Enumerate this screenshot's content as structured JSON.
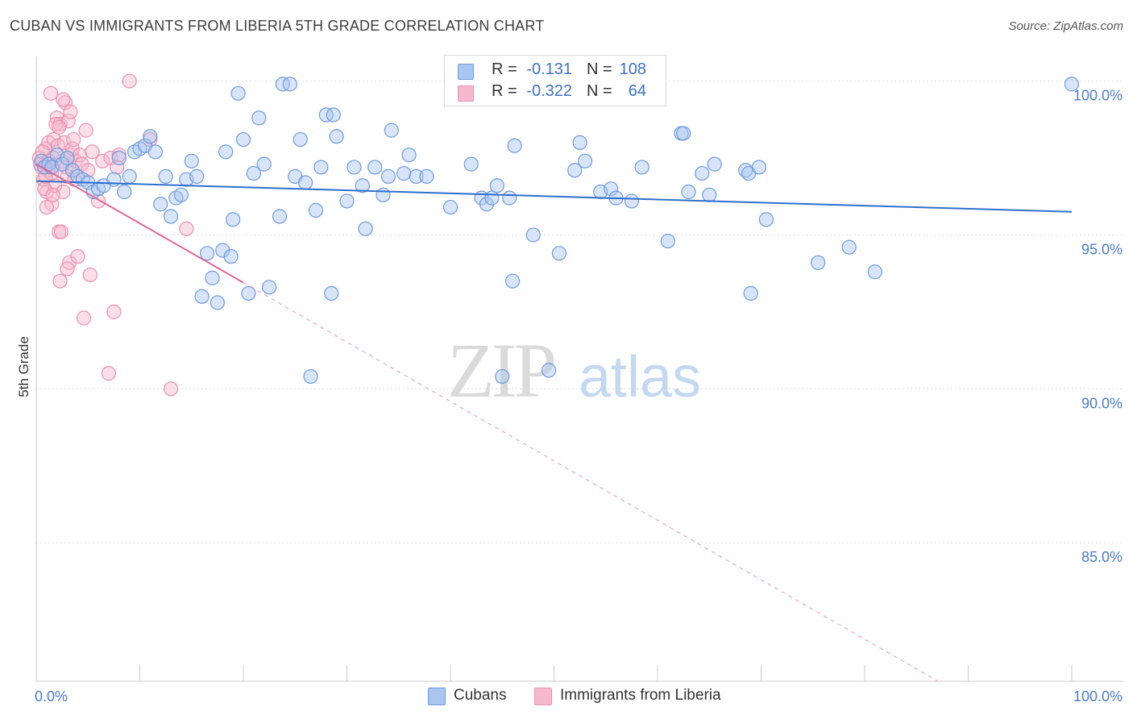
{
  "title": "CUBAN VS IMMIGRANTS FROM LIBERIA 5TH GRADE CORRELATION CHART",
  "source": "Source: ZipAtlas.com",
  "watermark": {
    "zip": "ZIP",
    "atlas": "atlas"
  },
  "legend": {
    "r_label": "R =",
    "n_label": "N =",
    "cubans": {
      "r": "-0.131",
      "n": "108"
    },
    "liberia": {
      "r": "-0.322",
      "n": "64"
    }
  },
  "bottom_legend": {
    "cubans": "Cubans",
    "liberia": "Immigrants from Liberia"
  },
  "colors": {
    "cubans_fill": "#a9c6f0",
    "cubans_stroke": "#6d9be0",
    "cubans_line": "#2f6fcc",
    "liberia_fill": "#f6b9cc",
    "liberia_stroke": "#ec8fb0",
    "liberia_line": "#e06693",
    "tick_label": "#4a7cc9",
    "grid": "#dddddd"
  },
  "chart_data": {
    "type": "scatter",
    "xlabel": "",
    "ylabel": "5th Grade",
    "xlim": [
      0,
      100
    ],
    "ylim": [
      80.5,
      100.8
    ],
    "x_tick_labels": [
      {
        "value": 0,
        "label": "0.0%"
      },
      {
        "value": 100,
        "label": "100.0%"
      }
    ],
    "y_ticks": [
      {
        "value": 100,
        "label": "100.0%"
      },
      {
        "value": 95,
        "label": "95.0%"
      },
      {
        "value": 90,
        "label": "90.0%"
      },
      {
        "value": 85,
        "label": "85.0%"
      }
    ],
    "grid": true,
    "series": [
      {
        "name": "Cubans",
        "trend": {
          "x": [
            0,
            100
          ],
          "y": [
            96.75,
            95.75
          ]
        },
        "points": [
          [
            0.5,
            97.4
          ],
          [
            0.8,
            97.2
          ],
          [
            1.2,
            97.3
          ],
          [
            1.5,
            97.2
          ],
          [
            2,
            97.6
          ],
          [
            2.5,
            97.3
          ],
          [
            3,
            97.5
          ],
          [
            3.5,
            97.1
          ],
          [
            4,
            96.9
          ],
          [
            4.5,
            96.8
          ],
          [
            5,
            96.7
          ],
          [
            5.5,
            96.4
          ],
          [
            6,
            96.5
          ],
          [
            6.5,
            96.6
          ],
          [
            7.5,
            96.8
          ],
          [
            8,
            97.5
          ],
          [
            8.5,
            96.4
          ],
          [
            9,
            96.9
          ],
          [
            9.5,
            97.7
          ],
          [
            10,
            97.8
          ],
          [
            10.5,
            97.9
          ],
          [
            11,
            98.2
          ],
          [
            11.5,
            97.7
          ],
          [
            12,
            96.0
          ],
          [
            12.5,
            96.9
          ],
          [
            13,
            95.6
          ],
          [
            13.5,
            96.2
          ],
          [
            14,
            96.3
          ],
          [
            14.5,
            96.8
          ],
          [
            15,
            97.4
          ],
          [
            15.5,
            96.9
          ],
          [
            16,
            93.0
          ],
          [
            16.5,
            94.4
          ],
          [
            17,
            93.6
          ],
          [
            17.5,
            92.8
          ],
          [
            18,
            94.5
          ],
          [
            18.3,
            97.7
          ],
          [
            18.8,
            94.3
          ],
          [
            19,
            95.5
          ],
          [
            19.5,
            99.6
          ],
          [
            20,
            98.1
          ],
          [
            20.5,
            93.1
          ],
          [
            21,
            97.0
          ],
          [
            21.5,
            98.8
          ],
          [
            22,
            97.3
          ],
          [
            22.5,
            93.3
          ],
          [
            23.5,
            95.6
          ],
          [
            23.8,
            99.9
          ],
          [
            24.5,
            99.9
          ],
          [
            25,
            96.9
          ],
          [
            25.5,
            98.1
          ],
          [
            26,
            96.7
          ],
          [
            26.5,
            90.4
          ],
          [
            27,
            95.8
          ],
          [
            27.5,
            97.2
          ],
          [
            28,
            98.9
          ],
          [
            28.5,
            93.1
          ],
          [
            28.7,
            98.9
          ],
          [
            29,
            98.2
          ],
          [
            30,
            96.1
          ],
          [
            30.7,
            97.2
          ],
          [
            31.5,
            96.6
          ],
          [
            31.8,
            95.2
          ],
          [
            32.7,
            97.2
          ],
          [
            33.5,
            96.3
          ],
          [
            34,
            96.9
          ],
          [
            34.3,
            98.4
          ],
          [
            35.5,
            97.0
          ],
          [
            36,
            97.6
          ],
          [
            36.7,
            96.9
          ],
          [
            37.7,
            96.9
          ],
          [
            40,
            95.9
          ],
          [
            42,
            97.3
          ],
          [
            43,
            96.2
          ],
          [
            43.5,
            96.0
          ],
          [
            44,
            96.2
          ],
          [
            44.5,
            96.6
          ],
          [
            45,
            90.4
          ],
          [
            45.7,
            96.2
          ],
          [
            46,
            93.5
          ],
          [
            46.2,
            97.9
          ],
          [
            48,
            95.0
          ],
          [
            49.5,
            90.6
          ],
          [
            50.5,
            94.4
          ],
          [
            52,
            97.1
          ],
          [
            52.5,
            98.0
          ],
          [
            53,
            97.4
          ],
          [
            54.5,
            96.4
          ],
          [
            55.5,
            96.5
          ],
          [
            56,
            96.2
          ],
          [
            57.5,
            96.1
          ],
          [
            58.5,
            97.2
          ],
          [
            61,
            94.8
          ],
          [
            62.3,
            98.3
          ],
          [
            62.5,
            98.3
          ],
          [
            63,
            96.4
          ],
          [
            64.3,
            97.0
          ],
          [
            65,
            96.3
          ],
          [
            65.5,
            97.3
          ],
          [
            68.5,
            97.1
          ],
          [
            68.8,
            97.0
          ],
          [
            69,
            93.1
          ],
          [
            69.8,
            97.2
          ],
          [
            70.5,
            95.5
          ],
          [
            75.5,
            94.1
          ],
          [
            78.5,
            94.6
          ],
          [
            81,
            93.8
          ],
          [
            100,
            99.9
          ]
        ]
      },
      {
        "name": "Immigrants from Liberia",
        "trend": {
          "x": [
            0,
            20
          ],
          "y": [
            97.3,
            93.45
          ]
        },
        "trend_extension": {
          "x": [
            20,
            100
          ],
          "y": [
            93.45,
            78.0
          ]
        },
        "points": [
          [
            0.3,
            97.5
          ],
          [
            0.5,
            97.2
          ],
          [
            0.7,
            96.8
          ],
          [
            0.9,
            97.8
          ],
          [
            1,
            96.4
          ],
          [
            1.2,
            98.0
          ],
          [
            1.3,
            97.3
          ],
          [
            1.5,
            96.0
          ],
          [
            1.6,
            97.5
          ],
          [
            1.7,
            98.1
          ],
          [
            1.8,
            96.6
          ],
          [
            2,
            98.8
          ],
          [
            2.1,
            97.9
          ],
          [
            2.2,
            95.1
          ],
          [
            2.3,
            98.6
          ],
          [
            2.4,
            95.1
          ],
          [
            2.5,
            97.4
          ],
          [
            2.6,
            96.4
          ],
          [
            2.7,
            98.0
          ],
          [
            2.8,
            99.3
          ],
          [
            2.9,
            97.2
          ],
          [
            3,
            96.9
          ],
          [
            3.1,
            98.7
          ],
          [
            3.2,
            94.1
          ],
          [
            3.3,
            99.0
          ],
          [
            3.4,
            97.6
          ],
          [
            3.5,
            97.8
          ],
          [
            3.6,
            98.1
          ],
          [
            3.8,
            97.4
          ],
          [
            4,
            94.3
          ],
          [
            4.2,
            97.6
          ],
          [
            4.4,
            97.3
          ],
          [
            4.6,
            92.3
          ],
          [
            4.8,
            98.4
          ],
          [
            5,
            97.1
          ],
          [
            5.2,
            93.7
          ],
          [
            5.4,
            97.7
          ],
          [
            6,
            96.1
          ],
          [
            6.4,
            97.4
          ],
          [
            7,
            90.5
          ],
          [
            7.2,
            97.5
          ],
          [
            7.5,
            92.5
          ],
          [
            7.8,
            97.2
          ],
          [
            8,
            97.6
          ],
          [
            9,
            100.0
          ],
          [
            11,
            98.1
          ],
          [
            13,
            90.0
          ],
          [
            14.5,
            95.2
          ],
          [
            1.4,
            99.6
          ],
          [
            2.6,
            99.4
          ],
          [
            1.1,
            97.1
          ],
          [
            0.4,
            97.3
          ],
          [
            0.6,
            97.7
          ],
          [
            0.8,
            96.5
          ],
          [
            1.5,
            97.0
          ],
          [
            1.9,
            98.6
          ],
          [
            2.2,
            98.5
          ],
          [
            1.0,
            95.9
          ],
          [
            0.9,
            96.9
          ],
          [
            3.7,
            96.8
          ],
          [
            2.3,
            93.5
          ],
          [
            1.6,
            96.3
          ],
          [
            1.2,
            97.4
          ],
          [
            3.0,
            93.9
          ]
        ]
      }
    ]
  }
}
